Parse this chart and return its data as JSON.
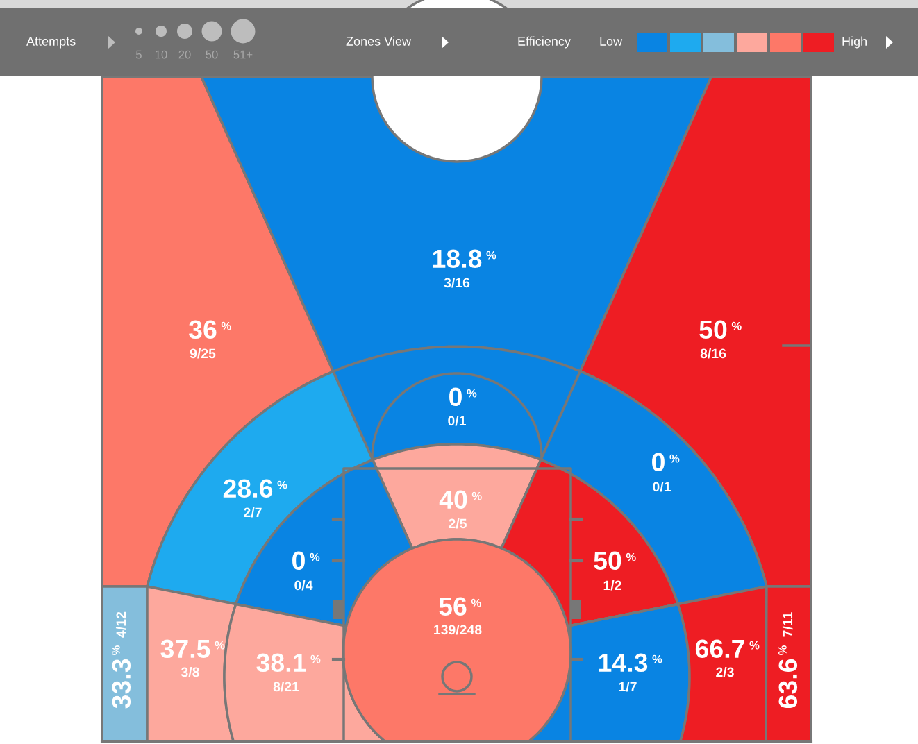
{
  "chart_data": {
    "type": "other",
    "categories": [
      "9/25",
      "3/16",
      "8/16",
      "0/1",
      "2/7",
      "0/1",
      "2/5",
      "0/4",
      "1/2",
      "139/248",
      "4/12",
      "3/8",
      "8/21",
      "1/7",
      "2/3",
      "7/11"
    ],
    "values": [
      36,
      18.8,
      50,
      0,
      28.6,
      0,
      40,
      0,
      50,
      56,
      33.3,
      37.5,
      38.1,
      14.3,
      66.7,
      63.6
    ],
    "data_labels": true,
    "colors": [
      "#fd7868",
      "#0984e3",
      "#ee1d23",
      "#0984e3",
      "#1eaaef",
      "#0984e3",
      "#fda89d",
      "#0984e3",
      "#ee1d23",
      "#fd7868",
      "#84bedc",
      "#fda89d",
      "#fda89d",
      "#0984e3",
      "#ee1d23",
      "#ee1d23"
    ],
    "annotations": [
      "Attempts",
      "5",
      "10",
      "20",
      "50",
      "51+",
      "Zones View",
      "Efficiency",
      "Low",
      "High",
      "%"
    ]
  }
}
